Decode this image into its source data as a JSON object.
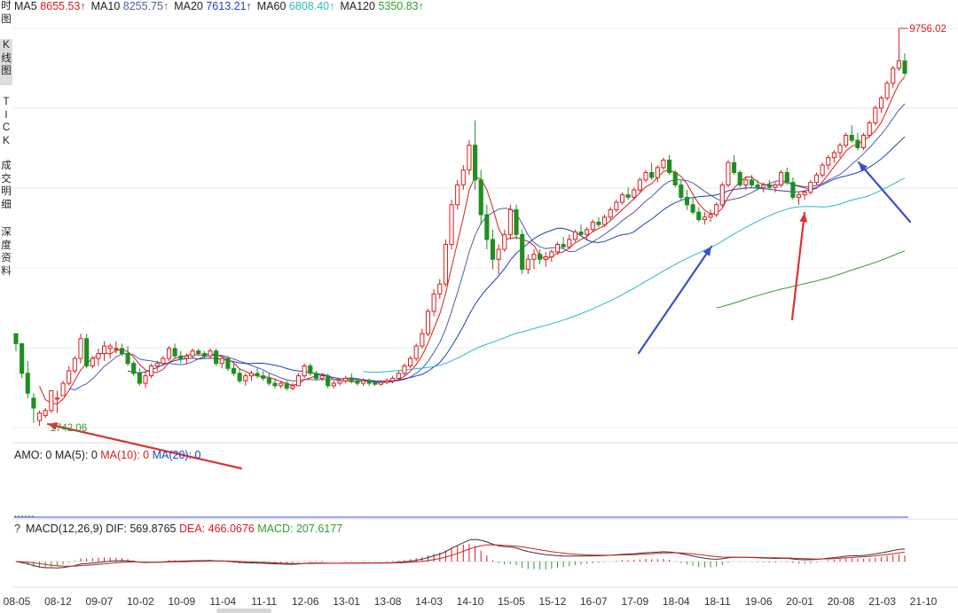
{
  "sidebar": {
    "tabs": [
      {
        "id": "time",
        "label": "时图",
        "active": false
      },
      {
        "id": "kline",
        "label": "K线图",
        "active": true
      },
      {
        "id": "tick",
        "label": "TICK",
        "active": false
      },
      {
        "id": "trade",
        "label": "成交明细",
        "active": false
      },
      {
        "id": "depth",
        "label": "深度资料",
        "active": false
      }
    ]
  },
  "ma_legend": [
    {
      "label": "MA5",
      "value": "8655.53↑",
      "color": "#d81e1e"
    },
    {
      "label": "MA10",
      "value": "8255.75↑",
      "color": "#4a5fa8"
    },
    {
      "label": "MA20",
      "value": "7613.21↑",
      "color": "#1f3fc4"
    },
    {
      "label": "MA60",
      "value": "6808.40↑",
      "color": "#2bb8c8"
    },
    {
      "label": "MA120",
      "value": "5350.83↑",
      "color": "#2e9d2e"
    }
  ],
  "amo_legend": {
    "prefix": "AMO: 0",
    "items": [
      {
        "label": "MA(5): 0",
        "color": "#222222"
      },
      {
        "label": "MA(10): 0",
        "color": "#d81e1e"
      },
      {
        "label": "MA(20): 0",
        "color": "#1f3fc4"
      }
    ]
  },
  "macd_legend": {
    "help": "?",
    "params": "MACD(12,26,9)",
    "items": [
      {
        "label": "DIF: 569.8765",
        "color": "#222222"
      },
      {
        "label": "DEA: 466.0676",
        "color": "#d81e1e"
      },
      {
        "label": "MACD: 207.6177",
        "color": "#2e9d2e"
      }
    ]
  },
  "chart_data": {
    "type": "candlestick",
    "price_labels": {
      "high": "9756.02",
      "low": "1742.06"
    },
    "x_tick_labels": [
      "08-05",
      "08-12",
      "09-07",
      "10-02",
      "10-09",
      "11-04",
      "11-11",
      "12-06",
      "13-01",
      "13-08",
      "14-03",
      "14-10",
      "15-05",
      "15-12",
      "16-07",
      "17-09",
      "18-04",
      "18-11",
      "19-06",
      "20-01",
      "20-08",
      "21-03",
      "21-10"
    ],
    "candles": [
      [
        3600,
        3600,
        3250,
        3400
      ],
      [
        3400,
        3400,
        2700,
        2800
      ],
      [
        2800,
        3050,
        2300,
        2400
      ],
      [
        2300,
        2400,
        1800,
        2100
      ],
      [
        1850,
        2050,
        1742.06,
        2000
      ],
      [
        1950,
        2100,
        1900,
        2050
      ],
      [
        2050,
        2450,
        2000,
        2450
      ],
      [
        2300,
        2450,
        2000,
        2300
      ],
      [
        2350,
        2650,
        2350,
        2600
      ],
      [
        2600,
        2950,
        2550,
        2850
      ],
      [
        2850,
        3150,
        2800,
        3100
      ],
      [
        3100,
        3600,
        3000,
        3500
      ],
      [
        3500,
        3600,
        2900,
        2950
      ],
      [
        2950,
        3150,
        2900,
        3100
      ],
      [
        3100,
        3300,
        2950,
        3200
      ],
      [
        3200,
        3450,
        3050,
        3350
      ],
      [
        3300,
        3400,
        3100,
        3350
      ],
      [
        3300,
        3450,
        3200,
        3300
      ],
      [
        3300,
        3400,
        3150,
        3200
      ],
      [
        3200,
        3350,
        2950,
        3000
      ],
      [
        3000,
        3050,
        2750,
        2800
      ],
      [
        2800,
        2900,
        2550,
        2600
      ],
      [
        2600,
        2850,
        2500,
        2750
      ],
      [
        2750,
        3000,
        2700,
        2950
      ],
      [
        2950,
        3050,
        2850,
        3000
      ],
      [
        3000,
        3150,
        2950,
        3100
      ],
      [
        3100,
        3350,
        3050,
        3300
      ],
      [
        3300,
        3400,
        3100,
        3150
      ],
      [
        3150,
        3250,
        3000,
        3100
      ],
      [
        3100,
        3200,
        3000,
        3150
      ],
      [
        3150,
        3300,
        3100,
        3250
      ],
      [
        3250,
        3300,
        3150,
        3200
      ],
      [
        3200,
        3250,
        3100,
        3150
      ],
      [
        3150,
        3300,
        3100,
        3250
      ],
      [
        3250,
        3300,
        2950,
        3000
      ],
      [
        3000,
        3150,
        2900,
        3100
      ],
      [
        3100,
        3150,
        2850,
        2900
      ],
      [
        2900,
        3000,
        2750,
        2800
      ],
      [
        2800,
        2900,
        2600,
        2650
      ],
      [
        2650,
        2800,
        2550,
        2750
      ],
      [
        2750,
        2850,
        2650,
        2800
      ],
      [
        2800,
        2900,
        2700,
        2750
      ],
      [
        2750,
        2850,
        2650,
        2700
      ],
      [
        2700,
        2800,
        2550,
        2600
      ],
      [
        2600,
        2700,
        2500,
        2550
      ],
      [
        2550,
        2650,
        2500,
        2600
      ],
      [
        2600,
        2650,
        2450,
        2500
      ],
      [
        2500,
        2600,
        2450,
        2550
      ],
      [
        2550,
        2800,
        2550,
        2750
      ],
      [
        2750,
        3000,
        2700,
        2950
      ],
      [
        2950,
        3000,
        2750,
        2800
      ],
      [
        2800,
        2850,
        2650,
        2700
      ],
      [
        2700,
        2800,
        2650,
        2750
      ],
      [
        2750,
        2800,
        2500,
        2550
      ],
      [
        2550,
        2650,
        2500,
        2600
      ],
      [
        2600,
        2700,
        2550,
        2650
      ],
      [
        2650,
        2750,
        2600,
        2700
      ],
      [
        2700,
        2800,
        2600,
        2650
      ],
      [
        2650,
        2700,
        2550,
        2600
      ],
      [
        2600,
        2700,
        2550,
        2650
      ],
      [
        2650,
        2700,
        2550,
        2600
      ],
      [
        2600,
        2650,
        2550,
        2580
      ],
      [
        2580,
        2650,
        2550,
        2620
      ],
      [
        2620,
        2700,
        2580,
        2650
      ],
      [
        2650,
        2750,
        2600,
        2700
      ],
      [
        2700,
        2850,
        2650,
        2800
      ],
      [
        2800,
        3000,
        2750,
        2950
      ],
      [
        2950,
        3150,
        2900,
        3100
      ],
      [
        3100,
        3400,
        3050,
        3350
      ],
      [
        3350,
        3700,
        3300,
        3600
      ],
      [
        3600,
        4100,
        3550,
        4050
      ],
      [
        4050,
        4500,
        3950,
        4400
      ],
      [
        4400,
        4700,
        4300,
        4600
      ],
      [
        4600,
        5500,
        4550,
        5400
      ],
      [
        5400,
        6300,
        5300,
        6200
      ],
      [
        6200,
        6700,
        6100,
        6600
      ],
      [
        6600,
        7000,
        6500,
        6900
      ],
      [
        6900,
        7500,
        6800,
        7400
      ],
      [
        7400,
        7900,
        6500,
        6700
      ],
      [
        6700,
        6900,
        5800,
        6000
      ],
      [
        6000,
        6200,
        5300,
        5500
      ],
      [
        5500,
        5700,
        4900,
        5100
      ],
      [
        5100,
        5400,
        4800,
        5300
      ],
      [
        5300,
        5700,
        5250,
        5600
      ],
      [
        5600,
        6200,
        5500,
        6100
      ],
      [
        6100,
        6200,
        5500,
        5600
      ],
      [
        5600,
        5700,
        4800,
        4900
      ],
      [
        4900,
        5200,
        4800,
        5100
      ],
      [
        5100,
        5300,
        4900,
        5200
      ],
      [
        5200,
        5300,
        5000,
        5100
      ],
      [
        5100,
        5250,
        4950,
        5150
      ],
      [
        5150,
        5300,
        5050,
        5250
      ],
      [
        5250,
        5450,
        5200,
        5400
      ],
      [
        5400,
        5550,
        5300,
        5350
      ],
      [
        5350,
        5600,
        5300,
        5500
      ],
      [
        5500,
        5700,
        5450,
        5650
      ],
      [
        5650,
        5800,
        5550,
        5600
      ],
      [
        5600,
        5750,
        5500,
        5700
      ],
      [
        5700,
        5900,
        5650,
        5850
      ],
      [
        5850,
        5950,
        5750,
        5800
      ],
      [
        5800,
        6000,
        5750,
        5950
      ],
      [
        5950,
        6150,
        5900,
        6100
      ],
      [
        6100,
        6300,
        6050,
        6250
      ],
      [
        6250,
        6450,
        6200,
        6400
      ],
      [
        6400,
        6550,
        6300,
        6350
      ],
      [
        6350,
        6550,
        6300,
        6500
      ],
      [
        6500,
        6750,
        6450,
        6700
      ],
      [
        6700,
        6900,
        6650,
        6850
      ],
      [
        6850,
        7050,
        6700,
        6750
      ],
      [
        6750,
        7000,
        6650,
        6950
      ],
      [
        6950,
        7150,
        6900,
        7100
      ],
      [
        7100,
        7200,
        6800,
        6850
      ],
      [
        6850,
        6900,
        6550,
        6600
      ],
      [
        6600,
        6700,
        6300,
        6350
      ],
      [
        6350,
        6500,
        6100,
        6200
      ],
      [
        6200,
        6350,
        6000,
        6050
      ],
      [
        6050,
        6150,
        5850,
        5900
      ],
      [
        5900,
        6050,
        5800,
        5950
      ],
      [
        5950,
        6100,
        5850,
        6000
      ],
      [
        6000,
        6250,
        5950,
        6200
      ],
      [
        6200,
        6650,
        6150,
        6600
      ],
      [
        6600,
        7100,
        6550,
        7050
      ],
      [
        7050,
        7200,
        6800,
        6850
      ],
      [
        6850,
        6900,
        6550,
        6600
      ],
      [
        6600,
        6750,
        6500,
        6700
      ],
      [
        6700,
        6800,
        6550,
        6600
      ],
      [
        6600,
        6700,
        6500,
        6550
      ],
      [
        6550,
        6650,
        6450,
        6600
      ],
      [
        6600,
        6700,
        6500,
        6550
      ],
      [
        6550,
        6650,
        6450,
        6600
      ],
      [
        6600,
        6900,
        6550,
        6850
      ],
      [
        6850,
        6950,
        6600,
        6650
      ],
      [
        6650,
        6750,
        6300,
        6350
      ],
      [
        6350,
        6450,
        6200,
        6400
      ],
      [
        6400,
        6500,
        6300,
        6450
      ],
      [
        6450,
        6700,
        6400,
        6650
      ],
      [
        6650,
        6850,
        6600,
        6800
      ],
      [
        6800,
        7050,
        6750,
        7000
      ],
      [
        7000,
        7200,
        6900,
        7150
      ],
      [
        7150,
        7300,
        7050,
        7250
      ],
      [
        7250,
        7450,
        7150,
        7400
      ],
      [
        7400,
        7650,
        7350,
        7600
      ],
      [
        7600,
        7800,
        7450,
        7500
      ],
      [
        7500,
        7650,
        7300,
        7350
      ],
      [
        7350,
        7650,
        7300,
        7600
      ],
      [
        7600,
        7900,
        7550,
        7850
      ],
      [
        7850,
        8200,
        7800,
        8150
      ],
      [
        8150,
        8400,
        8050,
        8350
      ],
      [
        8350,
        8700,
        8300,
        8650
      ],
      [
        8650,
        9000,
        8550,
        8950
      ],
      [
        8950,
        9756.02,
        8900,
        9100
      ],
      [
        9100,
        9250,
        8800,
        8850
      ]
    ],
    "lines": [
      {
        "name": "MA5",
        "color": "#d81e1e"
      },
      {
        "name": "MA10",
        "color": "#4a5fa8"
      },
      {
        "name": "MA20",
        "color": "#1f3fc4"
      },
      {
        "name": "MA60",
        "color": "#2bb8c8"
      },
      {
        "name": "MA120",
        "color": "#2e9d2e"
      }
    ],
    "macd": {
      "dif_color": "#333333",
      "dea_color": "#d81e1e",
      "bar_up": "#d81e1e",
      "bar_down": "#2e9d2e"
    }
  }
}
